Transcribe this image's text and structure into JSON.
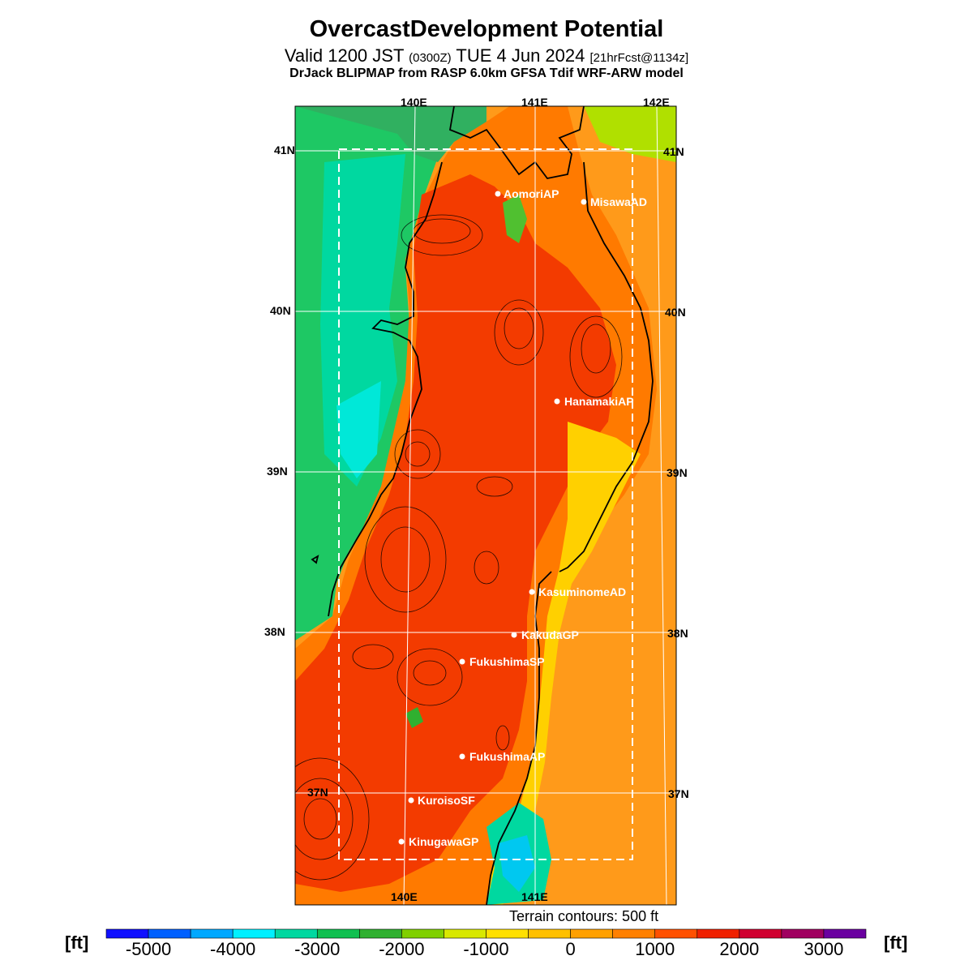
{
  "header": {
    "title": "OvercastDevelopment Potential",
    "valid_main": "Valid 1200 JST",
    "valid_utc": "(0300Z)",
    "valid_date": "TUE 4 Jun 2024",
    "forecast_info": "[21hrFcst@1134z]",
    "model_line": "DrJack BLIPMAP from RASP 6.0km GFSA Tdif WRF-ARW model"
  },
  "map": {
    "lon_labels_top": [
      "140E",
      "141E",
      "142E"
    ],
    "lon_labels_bottom": [
      "140E",
      "141E"
    ],
    "lat_labels": [
      "41N",
      "40N",
      "39N",
      "38N",
      "37N"
    ],
    "colors": {
      "land_hot": "#f33b00",
      "land_warm": "#ff7a00",
      "sea_east": "#ff9a1a",
      "sea_west": "#1ec864",
      "cold_pool": "#00e0c0",
      "coast": "#000000",
      "grid": "#ffffff"
    }
  },
  "sites": [
    {
      "name": "AomoriAP"
    },
    {
      "name": "MisawaAD"
    },
    {
      "name": "HanamakiAP"
    },
    {
      "name": "KasuminomeAD"
    },
    {
      "name": "KakudaGP"
    },
    {
      "name": "FukushimaSP"
    },
    {
      "name": "FukushimaAP"
    },
    {
      "name": "KuroisoSF"
    },
    {
      "name": "KinugawaGP"
    }
  ],
  "footer": {
    "terrain_note": "Terrain contours: 500 ft",
    "unit_left": "[ft]",
    "unit_right": "[ft]"
  },
  "colorbar": {
    "ticks": [
      "-5000",
      "-4000",
      "-3000",
      "-2000",
      "-1000",
      "0",
      "1000",
      "2000",
      "3000"
    ],
    "colors": [
      "#1010ff",
      "#0060ff",
      "#00a8ff",
      "#00f0ff",
      "#00d8a0",
      "#10c050",
      "#30b030",
      "#80d000",
      "#d8e800",
      "#ffe000",
      "#ffc000",
      "#ffa000",
      "#ff8000",
      "#ff5000",
      "#f02000",
      "#d00030",
      "#a00060",
      "#6a00a0"
    ]
  }
}
